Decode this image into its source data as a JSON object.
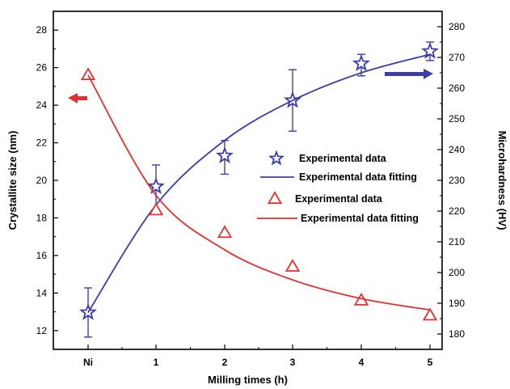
{
  "chart_data": {
    "type": "line",
    "x_categories": [
      "Ni",
      "1",
      "2",
      "3",
      "4",
      "5"
    ],
    "xlabel": "Milling times (h)",
    "ylabel_left": "Crystallite size (nm)",
    "ylabel_right": "Microhardness (HV)",
    "ylim_left": [
      11,
      29
    ],
    "ylim_right": [
      175,
      285
    ],
    "yticks_left": [
      12,
      14,
      16,
      18,
      20,
      22,
      24,
      26,
      28
    ],
    "yticks_right": [
      180,
      190,
      200,
      210,
      220,
      230,
      240,
      250,
      260,
      270,
      280
    ],
    "legend_position": "center-right",
    "series": [
      {
        "name": "Experimental data",
        "axis": "right",
        "marker": "star",
        "color": "#3d3daa",
        "values": [
          187,
          228,
          238,
          256,
          268,
          272
        ],
        "error_upper": [
          195,
          235,
          243,
          266,
          271,
          275
        ],
        "error_lower": [
          179,
          220,
          232,
          246,
          264,
          269
        ]
      },
      {
        "name": "Experimental data fitting",
        "axis": "right",
        "style": "line",
        "color": "#3d3daa",
        "values": [
          187,
          222,
          243,
          256,
          265,
          271
        ]
      },
      {
        "name": "Experimental data",
        "axis": "left",
        "marker": "triangle",
        "color": "#e53030",
        "values": [
          25.6,
          18.4,
          17.2,
          15.4,
          13.6,
          12.8
        ]
      },
      {
        "name": "Experimental data fitting",
        "axis": "left",
        "style": "line",
        "color": "#e53030",
        "values": [
          25.6,
          19.2,
          16.3,
          14.7,
          13.7,
          13.1
        ]
      }
    ],
    "annotations": [
      {
        "type": "arrow",
        "direction": "left",
        "color": "#e53030",
        "meaning": "red series uses left axis"
      },
      {
        "type": "arrow",
        "direction": "right",
        "color": "#3d3daa",
        "meaning": "blue series uses right axis"
      }
    ]
  }
}
